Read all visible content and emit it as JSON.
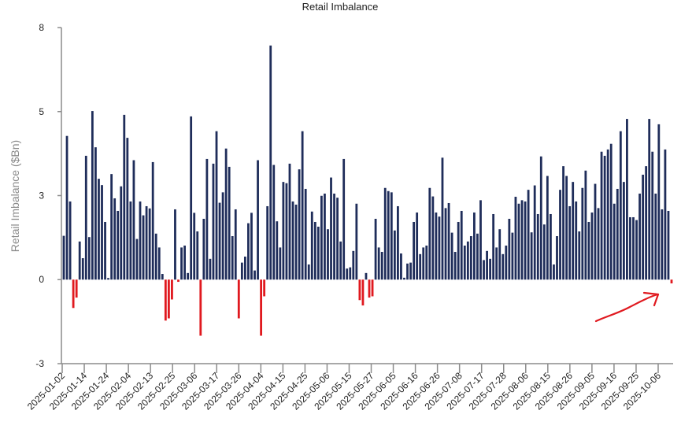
{
  "chart_data": {
    "type": "bar",
    "title": "Retail Imbalance",
    "xlabel": "",
    "ylabel": "Retail Imbalance ($Bn)",
    "ylim": [
      -2.667,
      8
    ],
    "grid": false,
    "legend": "none",
    "y_ticks": [
      {
        "value": 8,
        "label": "8"
      },
      {
        "value": 5.333,
        "label": "5"
      },
      {
        "value": 2.667,
        "label": "3"
      },
      {
        "value": 0,
        "label": "0"
      },
      {
        "value": -2.667,
        "label": "-3"
      }
    ],
    "x_tick_labels": [
      "2025-01-02",
      "2025-01-14",
      "2025-01-24",
      "2025-02-04",
      "2025-02-13",
      "2025-02-25",
      "2025-03-06",
      "2025-03-17",
      "2025-03-26",
      "2025-04-04",
      "2025-04-15",
      "2025-04-25",
      "2025-05-06",
      "2025-05-15",
      "2025-05-27",
      "2025-06-05",
      "2025-06-16",
      "2025-06-26",
      "2025-07-08",
      "2025-07-17",
      "2025-07-28",
      "2025-08-06",
      "2025-08-15",
      "2025-08-26",
      "2025-09-05",
      "2025-09-16",
      "2025-09-25",
      "2025-10-06"
    ],
    "colors": {
      "positive": "#1f2d5a",
      "negative": "#e0191f",
      "annotation": "#e0191f"
    },
    "values": [
      1.39,
      4.56,
      2.48,
      -0.9,
      -0.57,
      1.21,
      0.68,
      3.93,
      1.35,
      5.35,
      4.2,
      3.2,
      3.0,
      1.83,
      0.05,
      3.35,
      2.58,
      2.18,
      2.96,
      5.23,
      4.5,
      2.48,
      3.79,
      1.29,
      2.48,
      2.04,
      2.33,
      2.26,
      3.73,
      1.46,
      1.02,
      0.18,
      -1.3,
      -1.23,
      -0.63,
      2.23,
      -0.07,
      1.02,
      1.08,
      0.21,
      5.18,
      2.12,
      1.53,
      -1.78,
      1.93,
      3.83,
      0.66,
      3.68,
      4.71,
      2.44,
      2.77,
      4.16,
      3.58,
      1.38,
      2.23,
      -1.23,
      0.54,
      0.73,
      1.79,
      2.12,
      0.29,
      3.79,
      -1.78,
      -0.53,
      2.33,
      7.43,
      3.64,
      1.85,
      1.02,
      3.1,
      3.06,
      3.68,
      2.48,
      2.38,
      3.5,
      4.71,
      2.88,
      0.48,
      2.16,
      1.83,
      1.68,
      2.66,
      2.73,
      1.6,
      3.24,
      2.73,
      2.6,
      1.21,
      3.83,
      0.35,
      0.39,
      0.91,
      2.41,
      -0.65,
      -0.82,
      0.21,
      -0.57,
      -0.53,
      1.93,
      1.02,
      0.88,
      2.91,
      2.81,
      2.77,
      1.56,
      2.33,
      0.83,
      0.06,
      0.51,
      0.54,
      1.83,
      2.13,
      0.81,
      1.02,
      1.08,
      2.91,
      2.64,
      2.13,
      2.0,
      3.87,
      2.27,
      2.43,
      1.49,
      0.88,
      1.83,
      2.18,
      1.08,
      1.21,
      1.38,
      2.13,
      1.46,
      2.52,
      0.62,
      0.91,
      0.66,
      2.08,
      1.02,
      1.6,
      0.81,
      1.08,
      1.93,
      1.49,
      2.63,
      2.41,
      2.52,
      2.48,
      2.85,
      1.5,
      2.99,
      2.08,
      3.91,
      1.75,
      3.29,
      2.08,
      0.48,
      1.38,
      2.85,
      3.6,
      3.29,
      2.33,
      3.1,
      2.48,
      1.53,
      2.91,
      3.46,
      1.83,
      2.13,
      3.04,
      2.27,
      4.06,
      3.93,
      4.13,
      4.31,
      2.41,
      2.88,
      4.71,
      3.1,
      5.1,
      1.98,
      1.98,
      1.89,
      2.73,
      3.33,
      3.6,
      5.1,
      4.06,
      2.73,
      4.93,
      2.23,
      4.13,
      2.18,
      -0.12
    ]
  }
}
